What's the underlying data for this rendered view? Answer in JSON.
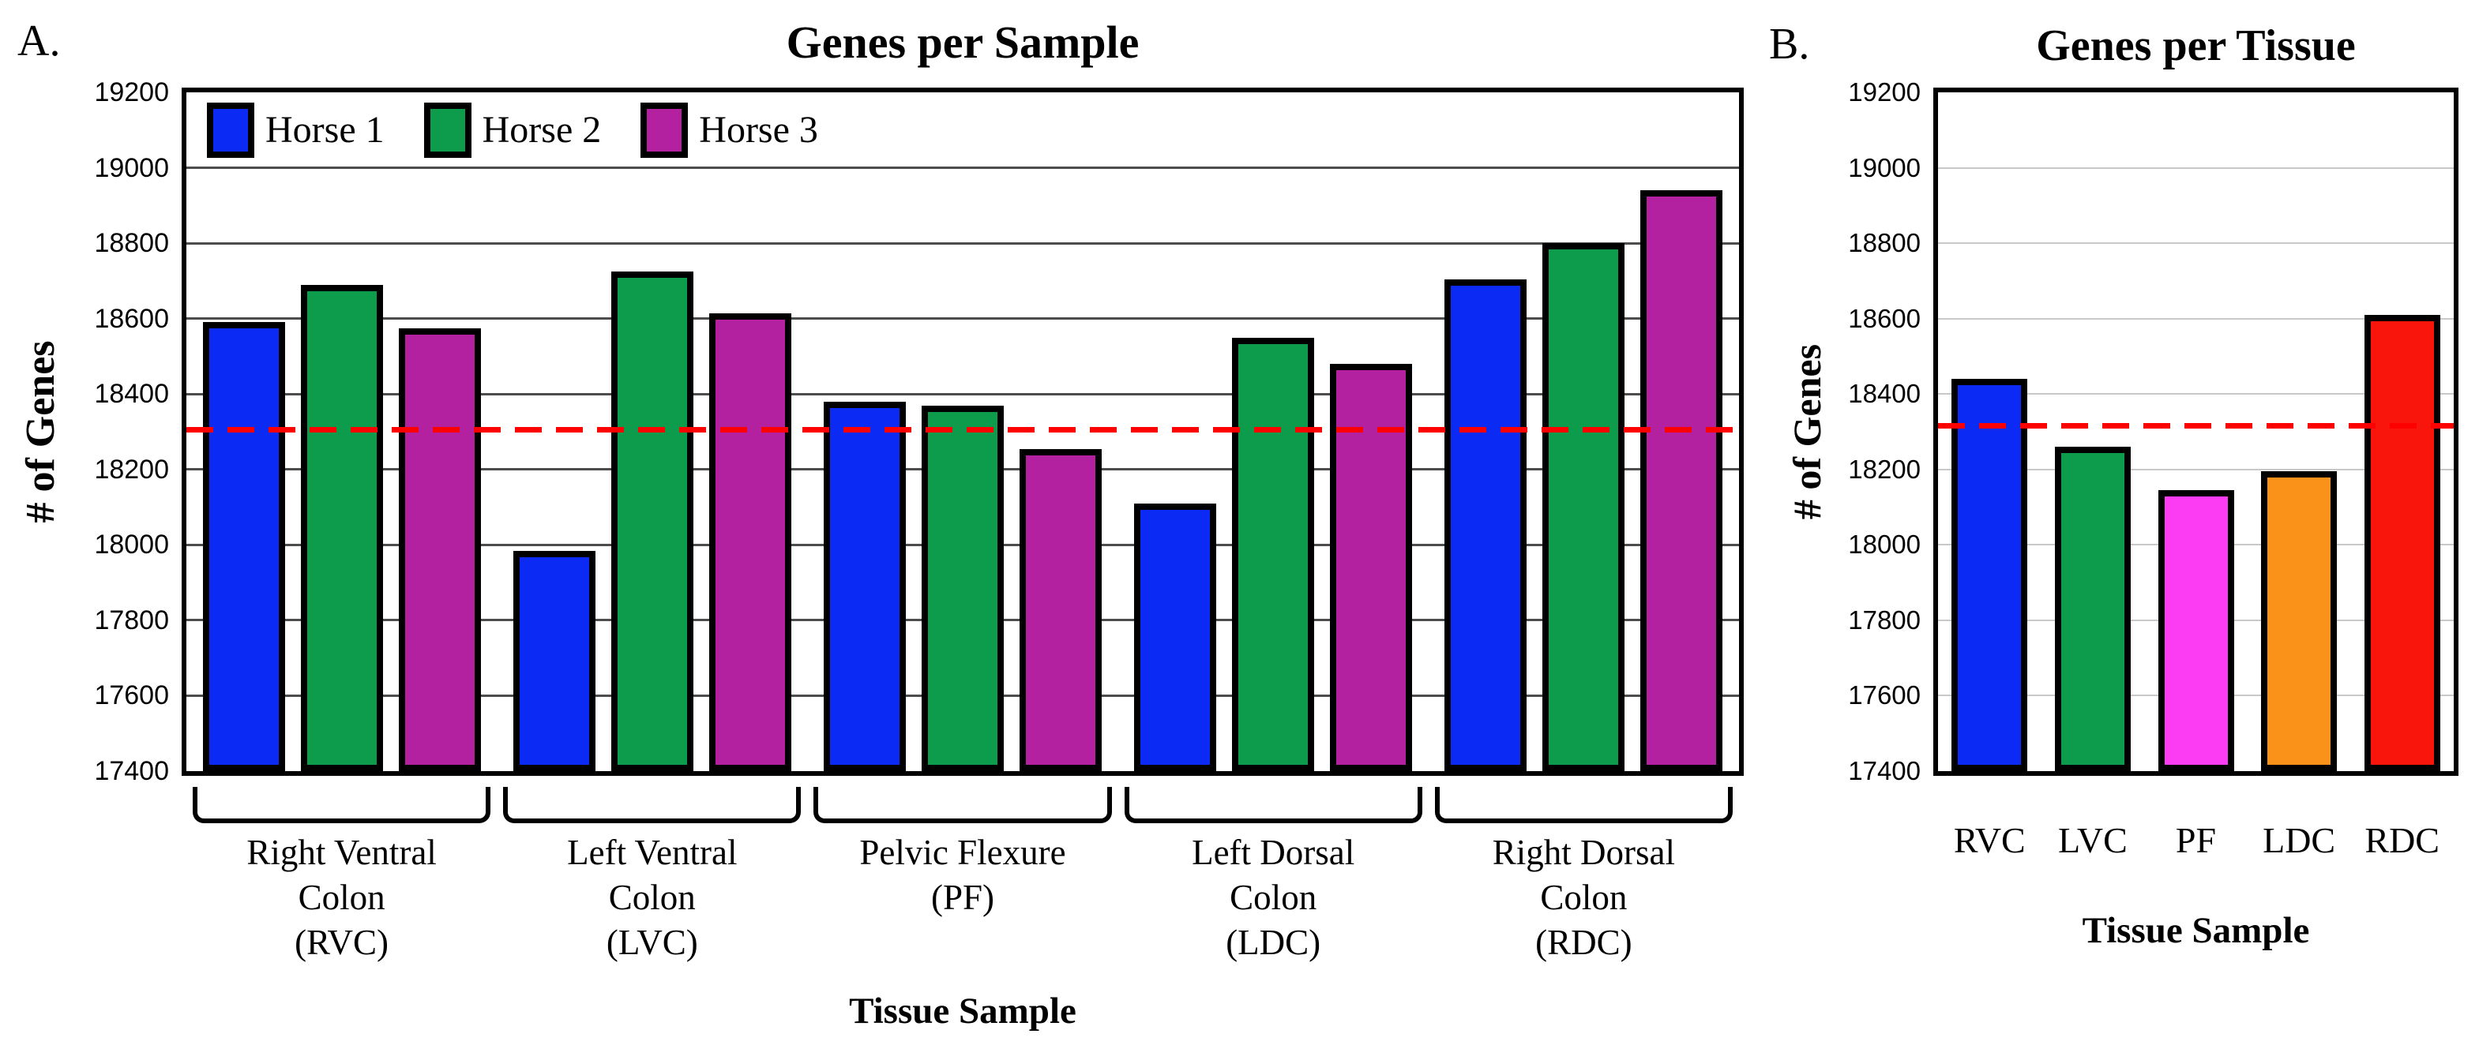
{
  "chart_data": [
    {
      "type": "bar",
      "panel_label": "A.",
      "title": "Genes per Sample",
      "xlabel": "Tissue Sample",
      "ylabel": "# of Genes",
      "ylim": [
        17400,
        19200
      ],
      "ytick_step": 200,
      "yticks": [
        19200,
        19000,
        18800,
        18600,
        18400,
        18200,
        18000,
        17800,
        17600,
        17400
      ],
      "grid": "horizontal",
      "gridline_color": "#4d4d4d",
      "legend_position": "inside-top-left",
      "categories": [
        "Right Ventral Colon (RVC)",
        "Left Ventral Colon (LVC)",
        "Pelvic Flexure (PF)",
        "Left Dorsal Colon (LDC)",
        "Right Dorsal Colon (RDC)"
      ],
      "category_label_lines": [
        [
          "Right Ventral",
          "Colon",
          "(RVC)"
        ],
        [
          "Left Ventral",
          "Colon",
          "(LVC)"
        ],
        [
          "Pelvic Flexure",
          "(PF)"
        ],
        [
          "Left Dorsal",
          "Colon",
          "(LDC)"
        ],
        [
          "Right Dorsal",
          "Colon",
          "(RDC)"
        ]
      ],
      "category_slugs": [
        "rvc",
        "lvc",
        "pf",
        "ldc",
        "rdc"
      ],
      "series": [
        {
          "name": "Horse 1",
          "color": "#0B2BF4",
          "values": [
            18590,
            17985,
            18380,
            18110,
            18705
          ]
        },
        {
          "name": "Horse 2",
          "color": "#0D9B4C",
          "values": [
            18690,
            18725,
            18370,
            18550,
            18800
          ]
        },
        {
          "name": "Horse 3",
          "color": "#B321A0",
          "values": [
            18575,
            18615,
            18255,
            18480,
            18940
          ]
        }
      ],
      "ref_line": {
        "value": 18305,
        "color": "#FE0000",
        "style": "dashed"
      }
    },
    {
      "type": "bar",
      "panel_label": "B.",
      "title": "Genes per Tissue",
      "xlabel": "Tissue Sample",
      "ylabel": "# of Genes",
      "ylim": [
        17400,
        19200
      ],
      "ytick_step": 200,
      "yticks": [
        19200,
        19000,
        18800,
        18600,
        18400,
        18200,
        18000,
        17800,
        17600,
        17400
      ],
      "grid": "horizontal",
      "gridline_color": "#c9c9c9",
      "categories": [
        "RVC",
        "LVC",
        "PF",
        "LDC",
        "RDC"
      ],
      "category_slugs": [
        "rvc",
        "lvc",
        "pf",
        "ldc",
        "rdc"
      ],
      "values": [
        18440,
        18260,
        18145,
        18195,
        18610
      ],
      "bar_colors": [
        "#0B2BF4",
        "#0D9B4C",
        "#FB3CF3",
        "#FA9219",
        "#F9150C"
      ],
      "ref_line": {
        "value": 18315,
        "color": "#FE0000",
        "style": "dashed"
      }
    }
  ]
}
